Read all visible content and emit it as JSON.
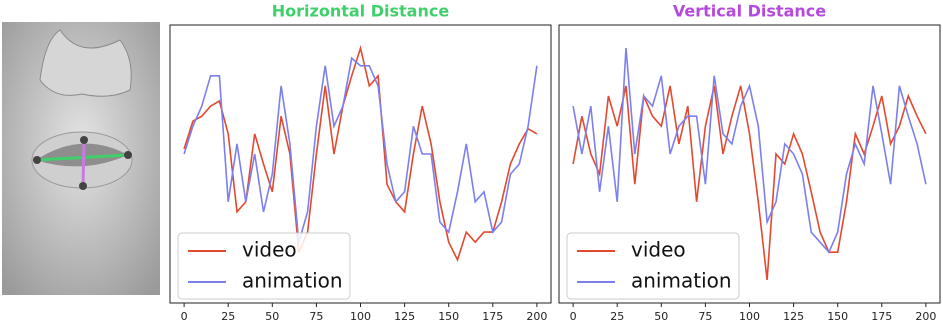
{
  "chart_data": [
    {
      "type": "line",
      "title": "Horizontal Distance",
      "title_color": "#3fcf6b",
      "x": [
        0,
        5,
        10,
        15,
        20,
        25,
        30,
        35,
        40,
        45,
        50,
        55,
        60,
        65,
        70,
        75,
        80,
        85,
        90,
        95,
        100,
        105,
        110,
        115,
        120,
        125,
        130,
        135,
        140,
        145,
        150,
        155,
        160,
        165,
        170,
        175,
        180,
        185,
        190,
        195,
        200
      ],
      "series": [
        {
          "name": "video",
          "color": "#e2492f",
          "values": [
            0.54,
            0.65,
            0.67,
            0.71,
            0.73,
            0.6,
            0.29,
            0.33,
            0.6,
            0.48,
            0.37,
            0.67,
            0.52,
            0.13,
            0.21,
            0.52,
            0.79,
            0.52,
            0.71,
            0.83,
            0.94,
            0.79,
            0.83,
            0.4,
            0.33,
            0.29,
            0.52,
            0.71,
            0.56,
            0.33,
            0.17,
            0.1,
            0.21,
            0.17,
            0.21,
            0.21,
            0.33,
            0.48,
            0.56,
            0.62,
            0.6
          ]
        },
        {
          "name": "animation",
          "color": "#7b80ee",
          "values": [
            0.52,
            0.63,
            0.71,
            0.83,
            0.83,
            0.33,
            0.56,
            0.33,
            0.52,
            0.29,
            0.44,
            0.79,
            0.56,
            0.17,
            0.29,
            0.63,
            0.87,
            0.63,
            0.71,
            0.9,
            0.87,
            0.87,
            0.79,
            0.48,
            0.33,
            0.37,
            0.63,
            0.52,
            0.52,
            0.25,
            0.21,
            0.37,
            0.56,
            0.33,
            0.37,
            0.21,
            0.25,
            0.44,
            0.48,
            0.63,
            0.87
          ]
        }
      ],
      "xlim": [
        -8,
        208
      ],
      "xticks": [
        0,
        25,
        50,
        75,
        100,
        125,
        150,
        175,
        200
      ],
      "ylim": [
        0,
        1
      ],
      "legend": "lower left"
    },
    {
      "type": "line",
      "title": "Vertical Distance",
      "title_color": "#b548df",
      "x": [
        0,
        5,
        10,
        15,
        20,
        25,
        30,
        35,
        40,
        45,
        50,
        55,
        60,
        65,
        70,
        75,
        80,
        85,
        90,
        95,
        100,
        105,
        110,
        115,
        120,
        125,
        130,
        135,
        140,
        145,
        150,
        155,
        160,
        165,
        170,
        175,
        180,
        185,
        190,
        195,
        200
      ],
      "series": [
        {
          "name": "video",
          "color": "#e2492f",
          "values": [
            0.48,
            0.67,
            0.52,
            0.44,
            0.75,
            0.63,
            0.79,
            0.4,
            0.75,
            0.67,
            0.63,
            0.79,
            0.56,
            0.71,
            0.33,
            0.63,
            0.79,
            0.52,
            0.67,
            0.79,
            0.6,
            0.33,
            0.02,
            0.52,
            0.48,
            0.6,
            0.52,
            0.37,
            0.21,
            0.13,
            0.13,
            0.33,
            0.6,
            0.52,
            0.63,
            0.75,
            0.56,
            0.63,
            0.75,
            0.67,
            0.6
          ]
        },
        {
          "name": "animation",
          "color": "#7b80ee",
          "values": [
            0.71,
            0.52,
            0.71,
            0.37,
            0.63,
            0.33,
            0.94,
            0.52,
            0.75,
            0.71,
            0.83,
            0.52,
            0.63,
            0.67,
            0.67,
            0.4,
            0.83,
            0.6,
            0.56,
            0.71,
            0.79,
            0.63,
            0.25,
            0.33,
            0.56,
            0.52,
            0.44,
            0.21,
            0.17,
            0.13,
            0.21,
            0.44,
            0.56,
            0.48,
            0.79,
            0.6,
            0.4,
            0.79,
            0.67,
            0.56,
            0.4
          ]
        }
      ],
      "xlim": [
        -8,
        208
      ],
      "xticks": [
        0,
        25,
        50,
        75,
        100,
        125,
        150,
        175,
        200
      ],
      "ylim": [
        0,
        1
      ],
      "legend": "lower left"
    }
  ]
}
